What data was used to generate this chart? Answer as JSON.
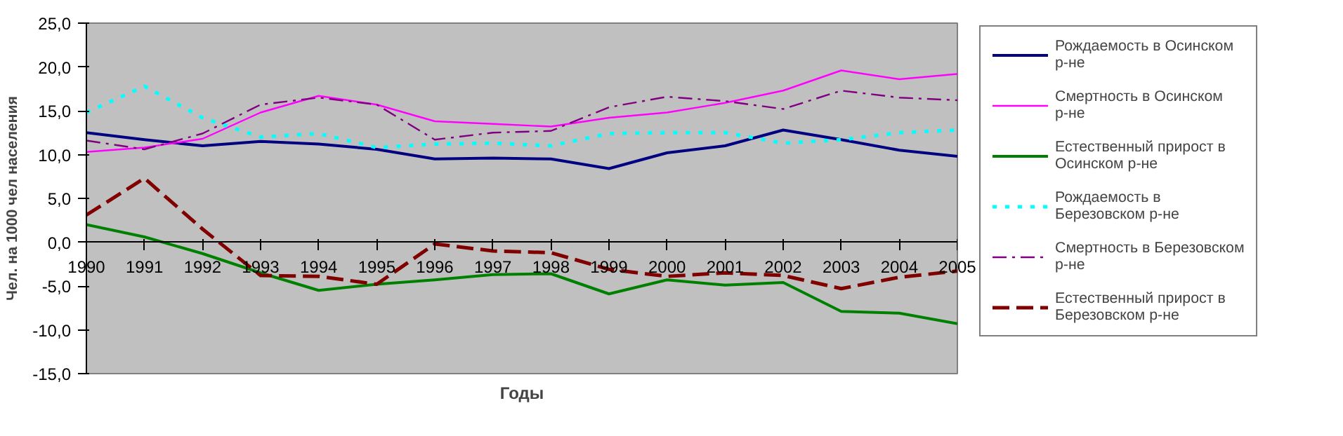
{
  "chart_data": {
    "type": "line",
    "xlabel": "Годы",
    "ylabel": "Чел. на 1000 чел населения",
    "x": [
      1990,
      1991,
      1992,
      1993,
      1994,
      1995,
      1996,
      1997,
      1998,
      1999,
      2000,
      2001,
      2002,
      2003,
      2004,
      2005
    ],
    "xlim": [
      1990,
      2005
    ],
    "xticks": [
      1990,
      1991,
      1992,
      1993,
      1994,
      1995,
      1996,
      1997,
      1998,
      1999,
      2000,
      2001,
      2002,
      2003,
      2004,
      2005
    ],
    "ylim": [
      -15,
      25
    ],
    "yticks": [
      {
        "value": -15,
        "label": "-15,0"
      },
      {
        "value": -10,
        "label": "-10,0"
      },
      {
        "value": -5,
        "label": "-5,0"
      },
      {
        "value": 0,
        "label": "0,0"
      },
      {
        "value": 5,
        "label": "5,0"
      },
      {
        "value": 10,
        "label": "10,0"
      },
      {
        "value": 15,
        "label": "15,0"
      },
      {
        "value": 20,
        "label": "20,0"
      },
      {
        "value": 25,
        "label": "25,0"
      }
    ],
    "grid": false,
    "legend": "right",
    "marker": "none",
    "series": [
      {
        "name": "Рождаемость в Осинском р-не",
        "color": "#000080",
        "line_style": "solid",
        "values": [
          12.5,
          11.7,
          11.0,
          11.5,
          11.2,
          10.6,
          9.5,
          9.6,
          9.5,
          8.4,
          10.2,
          11.0,
          12.8,
          11.7,
          10.5,
          9.8
        ]
      },
      {
        "name": "Смертность в Осинском р-не",
        "color": "#ff00ff",
        "line_style": "solid",
        "values": [
          10.3,
          10.8,
          11.8,
          14.8,
          16.7,
          15.7,
          13.8,
          13.5,
          13.2,
          14.2,
          14.8,
          15.9,
          17.3,
          19.6,
          18.6,
          19.2
        ]
      },
      {
        "name": "Естественный прирост в Осинском р-не",
        "color": "#008000",
        "line_style": "solid",
        "values": [
          2.0,
          0.6,
          -1.3,
          -3.5,
          -5.5,
          -4.8,
          -4.3,
          -3.7,
          -3.6,
          -5.9,
          -4.3,
          -4.9,
          -4.6,
          -7.9,
          -8.1,
          -9.3
        ]
      },
      {
        "name": "Рождаемость в Березовском р-не",
        "color": "#00ffff",
        "line_style": "dotted",
        "values": [
          14.8,
          17.8,
          14.2,
          12.0,
          12.4,
          10.8,
          11.2,
          11.3,
          11.0,
          12.4,
          12.5,
          12.5,
          11.3,
          11.7,
          12.5,
          12.8
        ]
      },
      {
        "name": "Смертность в Березовском р-не",
        "color": "#800080",
        "line_style": "dashdot",
        "values": [
          11.6,
          10.6,
          12.4,
          15.7,
          16.5,
          15.7,
          11.7,
          12.5,
          12.7,
          15.4,
          16.6,
          16.1,
          15.2,
          17.3,
          16.5,
          16.2
        ]
      },
      {
        "name": "Естественный прирост в Березовском р-не",
        "color": "#800000",
        "line_style": "dashed",
        "values": [
          3.1,
          7.3,
          1.5,
          -3.8,
          -3.9,
          -4.8,
          -0.2,
          -1.0,
          -1.2,
          -3.1,
          -3.9,
          -3.5,
          -3.8,
          -5.3,
          -4.0,
          -3.3
        ]
      }
    ]
  }
}
